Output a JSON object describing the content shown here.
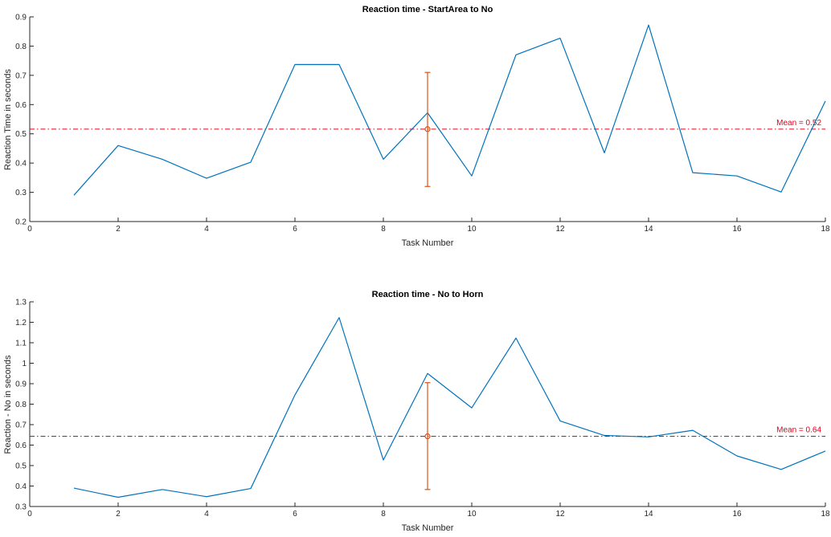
{
  "colors": {
    "series": "#0072bd",
    "mean_line": "#e3001b",
    "errorbar": "#d95319",
    "axis": "#262626"
  },
  "chart_data": [
    {
      "type": "line",
      "title": "Reaction time - StartArea to No",
      "xlabel": "Task Number",
      "ylabel": "Reaction Time in seconds",
      "xlim": [
        0,
        18
      ],
      "ylim": [
        0.2,
        0.9
      ],
      "xticks": [
        0,
        2,
        4,
        6,
        8,
        10,
        12,
        14,
        16,
        18
      ],
      "yticks": [
        0.2,
        0.3,
        0.4,
        0.5,
        0.6,
        0.7,
        0.8,
        0.9
      ],
      "x": [
        1,
        2,
        3,
        4,
        5,
        6,
        7,
        8,
        9,
        10,
        11,
        12,
        13,
        14,
        15,
        16,
        17,
        18
      ],
      "y": [
        0.29,
        0.46,
        0.413,
        0.348,
        0.403,
        0.737,
        0.737,
        0.413,
        0.572,
        0.356,
        0.77,
        0.827,
        0.435,
        0.872,
        0.367,
        0.356,
        0.301,
        0.612
      ],
      "mean": 0.516,
      "mean_label": "Mean = 0.52",
      "errorbar": {
        "x": 9,
        "y": 0.516,
        "lower": 0.32,
        "upper": 0.71
      },
      "grid": false
    },
    {
      "type": "line",
      "title": "Reaction time - No to Horn",
      "xlabel": "Task Number",
      "ylabel": "Reaction - No in seconds",
      "xlim": [
        0,
        18
      ],
      "ylim": [
        0.3,
        1.3
      ],
      "xticks": [
        0,
        2,
        4,
        6,
        8,
        10,
        12,
        14,
        16,
        18
      ],
      "yticks": [
        0.3,
        0.4,
        0.5,
        0.6,
        0.7,
        0.8,
        0.9,
        1,
        1.1,
        1.2,
        1.3
      ],
      "x": [
        1,
        2,
        3,
        4,
        5,
        6,
        7,
        8,
        9,
        10,
        11,
        12,
        13,
        14,
        15,
        16,
        17,
        18
      ],
      "y": [
        0.39,
        0.345,
        0.383,
        0.348,
        0.388,
        0.845,
        1.223,
        0.527,
        0.95,
        0.782,
        1.123,
        0.718,
        0.647,
        0.64,
        0.672,
        0.547,
        0.481,
        0.571
      ],
      "mean": 0.643,
      "mean_label": "Mean = 0.64",
      "errorbar": {
        "x": 9,
        "y": 0.643,
        "lower": 0.383,
        "upper": 0.905
      },
      "grid": false
    }
  ]
}
